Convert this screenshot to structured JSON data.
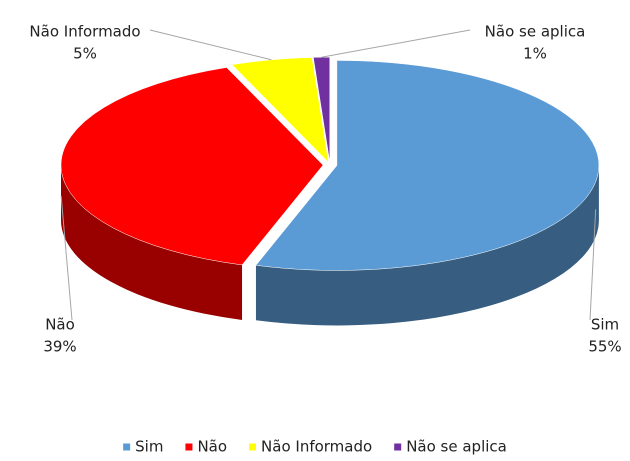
{
  "chart_data": {
    "type": "pie",
    "categories": [
      "Sim",
      "Não",
      "Não Informado",
      "Não se aplica"
    ],
    "values": [
      55,
      39,
      5,
      1
    ],
    "value_labels": [
      "55%",
      "39%",
      "5%",
      "1%"
    ],
    "colors": [
      "#5b9bd5",
      "#ff0000",
      "#ffff00",
      "#7030a0"
    ],
    "legend": "bottom"
  }
}
